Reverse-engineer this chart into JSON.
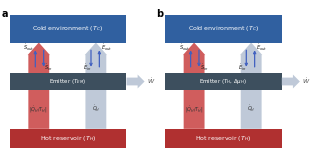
{
  "fig_width": 3.12,
  "fig_height": 1.63,
  "dpi": 100,
  "panels": [
    "a",
    "b"
  ],
  "cold_box_color": "#3060a0",
  "cold_box_text_color": "white",
  "emitter_box_color": "#3d4f5e",
  "emitter_box_text_color": "white",
  "hot_box_color": "#b03030",
  "hot_box_text_color": "white",
  "s_arrow_color": "#c84040",
  "e_arrow_color": "#b8c4d4",
  "small_up_arrow_color": "#4060c0",
  "small_dn_arrow_color": "#4060c0",
  "cold_text_a": "Cold environment ($T_C$)",
  "cold_text_b": "Cold environment ($T_C$)",
  "emitter_text_a": "Emitter ($T_{EM}$)",
  "emitter_text_b": "Emitter ($T_H$, $\\Delta\\mu_H$)",
  "hot_text": "Hot reservoir ($T_H$)",
  "s_out_label": "$\\dot{S}_{out}$",
  "s_in_label": "$\\dot{S}_{in}$",
  "e_out_label": "$\\dot{E}_{out}$",
  "e_in_label": "$\\dot{E}_{in}$",
  "qh_th_label_a": "$|\\dot{Q}_H/T_H|$",
  "qh_label_a": "$\\dot{Q}_H$",
  "qh_th_label_b": "$|\\dot{Q}_H/T_H|$",
  "qh_label_b": "$\\dot{Q}_H$",
  "w_label": "$\\dot{W}$",
  "bg_color": "white"
}
